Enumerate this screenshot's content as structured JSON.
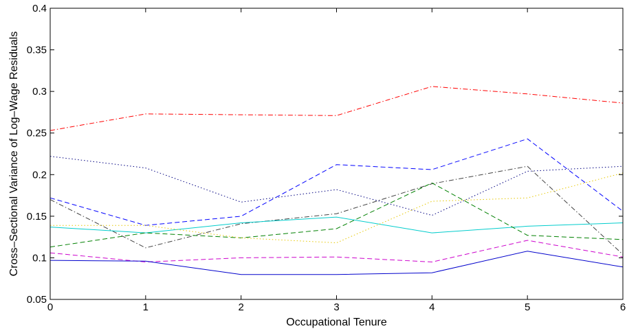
{
  "chart_data": {
    "type": "line",
    "title": "",
    "xlabel": "Occupational Tenure",
    "ylabel": "Cross–Sectional Variance of Log–Wage Residuals",
    "xlim": [
      0,
      6
    ],
    "ylim": [
      0.05,
      0.4
    ],
    "xticks": [
      "0",
      "1",
      "2",
      "3",
      "4",
      "5",
      "6"
    ],
    "yticks": [
      "0.05",
      "0.1",
      "0.15",
      "0.2",
      "0.25",
      "0.3",
      "0.35",
      "0.4"
    ],
    "grid": false,
    "legend": "none",
    "x": [
      0,
      1,
      2,
      3,
      4,
      5,
      6
    ],
    "series": [
      {
        "color": "#ff0000",
        "style": "dashdot",
        "values": [
          0.253,
          0.273,
          0.272,
          0.271,
          0.306,
          0.297,
          0.286
        ]
      },
      {
        "color": "#000080",
        "style": "dotted",
        "values": [
          0.222,
          0.208,
          0.167,
          0.182,
          0.151,
          0.204,
          0.21
        ]
      },
      {
        "color": "#0000ff",
        "style": "dashed",
        "values": [
          0.172,
          0.139,
          0.15,
          0.212,
          0.206,
          0.243,
          0.156
        ]
      },
      {
        "color": "#404040",
        "style": "dashdot",
        "values": [
          0.17,
          0.112,
          0.141,
          0.153,
          0.189,
          0.21,
          0.104
        ]
      },
      {
        "color": "#00cccc",
        "style": "solid",
        "values": [
          0.137,
          0.13,
          0.142,
          0.149,
          0.13,
          0.138,
          0.142
        ]
      },
      {
        "color": "#008000",
        "style": "dashed",
        "values": [
          0.113,
          0.13,
          0.124,
          0.135,
          0.19,
          0.127,
          0.122
        ]
      },
      {
        "color": "#e6c800",
        "style": "dotted",
        "values": [
          0.139,
          0.139,
          0.124,
          0.118,
          0.168,
          0.172,
          0.202
        ]
      },
      {
        "color": "#cc00cc",
        "style": "dashed",
        "values": [
          0.106,
          0.095,
          0.1,
          0.101,
          0.095,
          0.121,
          0.101
        ]
      },
      {
        "color": "#0000cc",
        "style": "solid",
        "values": [
          0.097,
          0.096,
          0.08,
          0.08,
          0.082,
          0.108,
          0.089
        ]
      }
    ]
  }
}
